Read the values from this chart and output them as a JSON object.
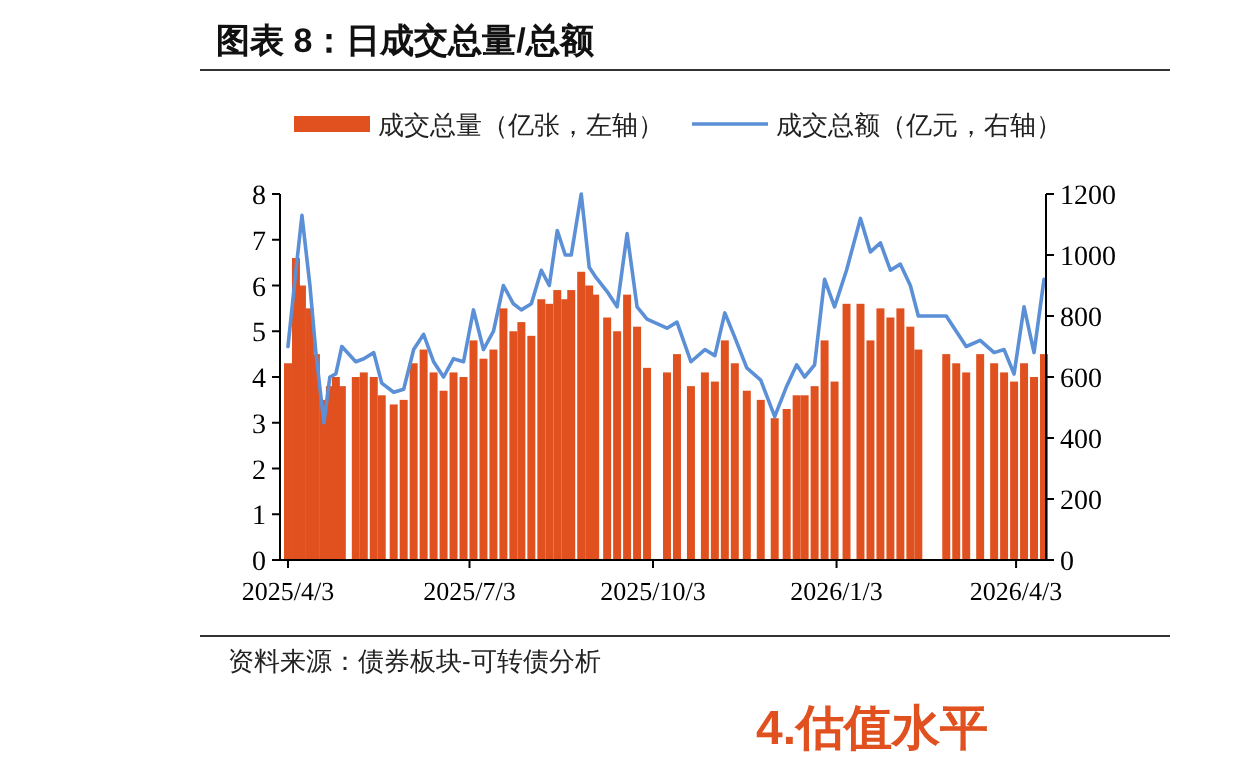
{
  "chart_data": {
    "type": "bar",
    "title": "图表 8：日成交总量/总额",
    "legend": "top",
    "x": [
      "2025-04-03",
      "2025-04-07",
      "2025-04-10",
      "2025-04-14",
      "2025-04-17",
      "2025-04-21",
      "2025-04-24",
      "2025-04-27",
      "2025-04-30",
      "2025-05-07",
      "2025-05-11",
      "2025-05-16",
      "2025-05-20",
      "2025-05-26",
      "2025-05-31",
      "2025-06-05",
      "2025-06-10",
      "2025-06-15",
      "2025-06-20",
      "2025-06-25",
      "2025-06-30",
      "2025-07-05",
      "2025-07-10",
      "2025-07-15",
      "2025-07-20",
      "2025-07-25",
      "2025-07-29",
      "2025-08-03",
      "2025-08-08",
      "2025-08-12",
      "2025-08-16",
      "2025-08-20",
      "2025-08-23",
      "2025-08-28",
      "2025-09-01",
      "2025-09-04",
      "2025-09-10",
      "2025-09-15",
      "2025-09-20",
      "2025-09-25",
      "2025-09-30",
      "2025-10-10",
      "2025-10-15",
      "2025-10-22",
      "2025-10-29",
      "2025-11-03",
      "2025-11-08",
      "2025-11-13",
      "2025-11-19",
      "2025-11-26",
      "2025-12-03",
      "2025-12-09",
      "2025-12-14",
      "2025-12-18",
      "2025-12-23",
      "2025-12-28",
      "2026-01-02",
      "2026-01-08",
      "2026-01-15",
      "2026-01-20",
      "2026-01-25",
      "2026-01-30",
      "2026-02-04",
      "2026-02-09",
      "2026-02-13",
      "2026-02-27",
      "2026-03-04",
      "2026-03-09",
      "2026-03-16",
      "2026-03-23",
      "2026-03-28",
      "2026-04-02",
      "2026-04-07",
      "2026-04-12",
      "2026-04-17"
    ],
    "series": [
      {
        "name": "成交总量（亿张，左轴）",
        "color": "#e0511f",
        "values": [
          4.3,
          6.6,
          6.0,
          5.5,
          4.5,
          3.5,
          3.8,
          4.0,
          3.8,
          4.0,
          4.1,
          4.0,
          3.6,
          3.4,
          3.5,
          4.3,
          4.6,
          4.1,
          3.7,
          4.1,
          4.0,
          4.8,
          4.4,
          4.6,
          5.5,
          5.0,
          5.2,
          4.9,
          5.7,
          5.6,
          5.9,
          5.7,
          5.9,
          6.3,
          6.0,
          5.8,
          5.3,
          5.0,
          5.8,
          5.1,
          4.2,
          4.1,
          4.5,
          3.8,
          4.1,
          3.9,
          4.8,
          4.3,
          3.7,
          3.5,
          3.1,
          3.3,
          3.6,
          3.6,
          3.8,
          4.8,
          3.9,
          5.6,
          5.6,
          4.8,
          5.5,
          5.3,
          5.5,
          5.1,
          4.6,
          4.5,
          4.3,
          4.1,
          4.5,
          4.3,
          4.1,
          3.9,
          4.3,
          4.0,
          4.5
        ]
      },
      {
        "name": "成交总额（亿元，右轴）",
        "type": "line",
        "axis": "y2",
        "color": "#5b8fd6",
        "values": [
          700,
          950,
          1130,
          900,
          680,
          450,
          600,
          610,
          700,
          650,
          660,
          680,
          580,
          550,
          560,
          690,
          740,
          650,
          600,
          660,
          650,
          820,
          690,
          750,
          900,
          840,
          820,
          840,
          950,
          900,
          1080,
          1000,
          1000,
          1200,
          960,
          930,
          880,
          830,
          1070,
          830,
          790,
          760,
          780,
          650,
          690,
          670,
          810,
          730,
          630,
          590,
          470,
          570,
          640,
          600,
          640,
          920,
          830,
          950,
          1120,
          1010,
          1040,
          950,
          970,
          900,
          800,
          800,
          750,
          700,
          720,
          680,
          690,
          610,
          830,
          680,
          920
        ]
      }
    ],
    "xlim": [
      "2025-03-30",
      "2026-04-18"
    ],
    "xticks": [
      {
        "value": "2025-04-03",
        "label": "2025/4/3"
      },
      {
        "value": "2025-07-03",
        "label": "2025/7/3"
      },
      {
        "value": "2025-10-03",
        "label": "2025/10/3"
      },
      {
        "value": "2026-01-03",
        "label": "2026/1/3"
      },
      {
        "value": "2026-04-03",
        "label": "2026/4/3"
      }
    ],
    "ylim": [
      0,
      8
    ],
    "yticks": [
      0,
      1,
      2,
      3,
      4,
      5,
      6,
      7,
      8
    ],
    "y2lim": [
      0,
      1200
    ],
    "y2ticks": [
      0,
      200,
      400,
      600,
      800,
      1000,
      1200
    ],
    "annotations": [
      "资料来源：债券板块-可转债分析",
      "4.估值水平"
    ]
  }
}
